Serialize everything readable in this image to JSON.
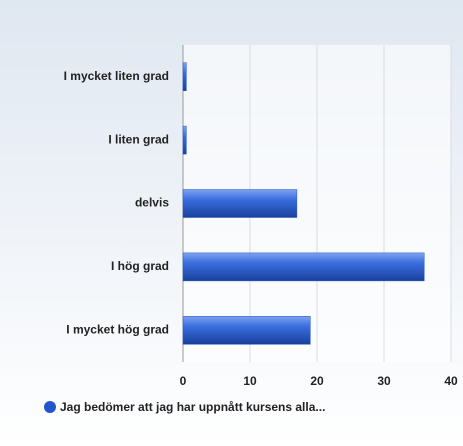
{
  "chart_data": {
    "type": "bar",
    "orientation": "horizontal",
    "categories": [
      "I mycket liten grad",
      "I liten grad",
      "delvis",
      "I hög grad",
      "I mycket hög grad"
    ],
    "series": [
      {
        "name": "Jag bedömer att jag har uppnått kursens alla...",
        "color": "#2255cc",
        "values": [
          0.5,
          0.5,
          17,
          36,
          19
        ]
      }
    ],
    "xlim": [
      0,
      40
    ],
    "xticks": [
      0,
      10,
      20,
      30,
      40
    ],
    "grid": true,
    "legend": "bottom"
  }
}
